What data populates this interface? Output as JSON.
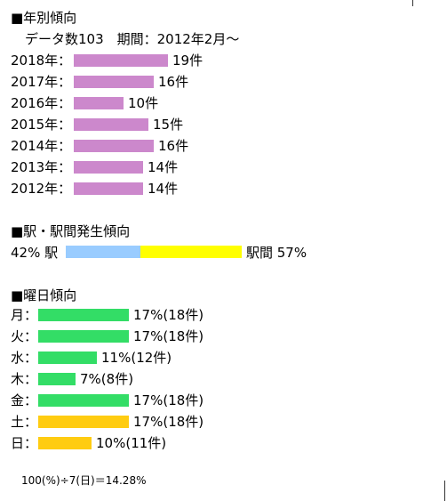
{
  "yearly": {
    "title": "■年別傾向",
    "meta": "データ数103　期間：2012年2月～",
    "bar_color": "#cc88cc",
    "rows": [
      {
        "label": "2018年：",
        "value": 19,
        "text": "19件"
      },
      {
        "label": "2017年：",
        "value": 16,
        "text": "16件"
      },
      {
        "label": "2016年：",
        "value": 10,
        "text": "10件"
      },
      {
        "label": "2015年：",
        "value": 15,
        "text": "15件"
      },
      {
        "label": "2014年：",
        "value": 16,
        "text": "16件"
      },
      {
        "label": "2013年：",
        "value": 14,
        "text": "14件"
      },
      {
        "label": "2012年：",
        "value": 14,
        "text": "14件"
      }
    ]
  },
  "station": {
    "title": "■駅・駅間発生傾向",
    "left_text": "42% 駅",
    "right_text": "駅間 57%",
    "left_pct": 42,
    "right_pct": 57,
    "left_color": "#99ccff",
    "right_color": "#ffff00"
  },
  "weekday": {
    "title": "■曜日傾向",
    "weekday_color": "#33dd66",
    "weekend_color": "#ffcc11",
    "rows": [
      {
        "label": "月：",
        "pct": 17,
        "text": "17%(18件)",
        "weekend": false
      },
      {
        "label": "火：",
        "pct": 17,
        "text": "17%(18件)",
        "weekend": false
      },
      {
        "label": "水：",
        "pct": 11,
        "text": "11%(12件)",
        "weekend": false
      },
      {
        "label": "木：",
        "pct": 7,
        "text": "7%(8件)",
        "weekend": false
      },
      {
        "label": "金：",
        "pct": 17,
        "text": "17%(18件)",
        "weekend": false
      },
      {
        "label": "土：",
        "pct": 17,
        "text": "17%(18件)",
        "weekend": true
      },
      {
        "label": "日：",
        "pct": 10,
        "text": "10%(11件)",
        "weekend": true
      }
    ]
  },
  "footnote": "100(%)÷7(日)＝14.28%"
}
